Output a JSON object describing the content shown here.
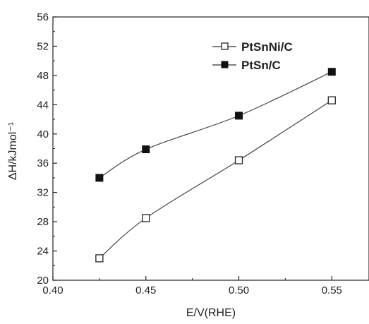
{
  "chart_data": {
    "type": "line",
    "xlabel": "E/V(RHE)",
    "ylabel": "ΔH/kJmol⁻¹",
    "xlim": [
      0.4,
      0.57
    ],
    "ylim": [
      20,
      56
    ],
    "xticks": [
      0.4,
      0.45,
      0.5,
      0.55
    ],
    "xtick_labels": [
      "0.40",
      "0.45",
      "0.50",
      "0.55"
    ],
    "yticks": [
      20,
      24,
      28,
      32,
      36,
      40,
      44,
      48,
      52,
      56
    ],
    "ytick_labels": [
      "20",
      "24",
      "28",
      "32",
      "36",
      "40",
      "44",
      "48",
      "52",
      "56"
    ],
    "grid": false,
    "legend_position": "top-right",
    "series": [
      {
        "name": "PtSnNi/C",
        "marker": "open-square",
        "color": "#222222",
        "x": [
          0.425,
          0.45,
          0.5,
          0.55
        ],
        "y": [
          23.0,
          28.5,
          36.4,
          44.6
        ]
      },
      {
        "name": "PtSn/C",
        "marker": "filled-square",
        "color": "#222222",
        "x": [
          0.425,
          0.45,
          0.5,
          0.55
        ],
        "y": [
          34.0,
          37.9,
          42.5,
          48.5
        ]
      }
    ]
  }
}
